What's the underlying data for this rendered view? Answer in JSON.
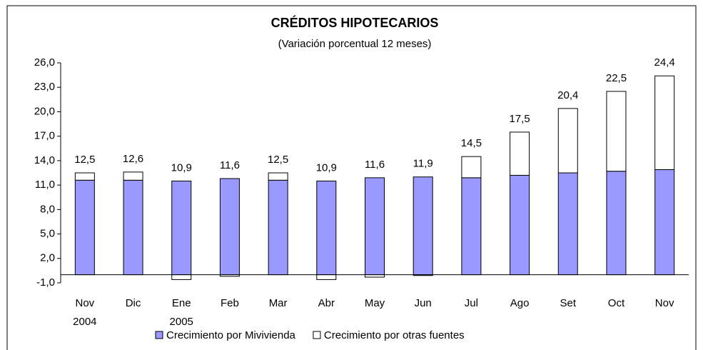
{
  "chart_data": {
    "type": "stacked_bar",
    "title": "CRÉDITOS HIPOTECARIOS",
    "subtitle": "(Variación porcentual 12 meses)",
    "categories": [
      [
        "Nov",
        "2004"
      ],
      [
        "Dic"
      ],
      [
        "Ene",
        "2005"
      ],
      [
        "Feb"
      ],
      [
        "Mar"
      ],
      [
        "Abr"
      ],
      [
        "May"
      ],
      [
        "Jun"
      ],
      [
        "Jul"
      ],
      [
        "Ago"
      ],
      [
        "Set"
      ],
      [
        "Oct"
      ],
      [
        "Nov"
      ]
    ],
    "series": [
      {
        "name": "Crecimiento por Mivivienda",
        "color": "#9999ff",
        "values": [
          11.6,
          11.6,
          11.5,
          11.8,
          11.6,
          11.5,
          11.9,
          12.0,
          11.9,
          12.2,
          12.5,
          12.7,
          12.9
        ]
      },
      {
        "name": "Crecimiento por otras fuentes",
        "color": "#ffffff",
        "values": [
          0.9,
          1.0,
          -0.6,
          -0.2,
          0.9,
          -0.6,
          -0.3,
          -0.1,
          2.6,
          5.3,
          7.9,
          9.8,
          11.5
        ]
      }
    ],
    "totals": [
      12.5,
      12.6,
      10.9,
      11.6,
      12.5,
      10.9,
      11.6,
      11.9,
      14.5,
      17.5,
      20.4,
      22.5,
      24.4
    ],
    "total_labels": [
      "12,5",
      "12,6",
      "10,9",
      "11,6",
      "12,5",
      "10,9",
      "11,6",
      "11,9",
      "14,5",
      "17,5",
      "20,4",
      "22,5",
      "24,4"
    ],
    "ylim": [
      -1,
      26
    ],
    "yticks": [
      {
        "value": -1,
        "label": "-1,0"
      },
      {
        "value": 2,
        "label": "2,0"
      },
      {
        "value": 5,
        "label": "5,0"
      },
      {
        "value": 8,
        "label": "8,0"
      },
      {
        "value": 11,
        "label": "11,0"
      },
      {
        "value": 14,
        "label": "14,0"
      },
      {
        "value": 17,
        "label": "17,0"
      },
      {
        "value": 20,
        "label": "20,0"
      },
      {
        "value": 23,
        "label": "23,0"
      },
      {
        "value": 26,
        "label": "26,0"
      }
    ],
    "grid": false,
    "legend": "bottom"
  }
}
